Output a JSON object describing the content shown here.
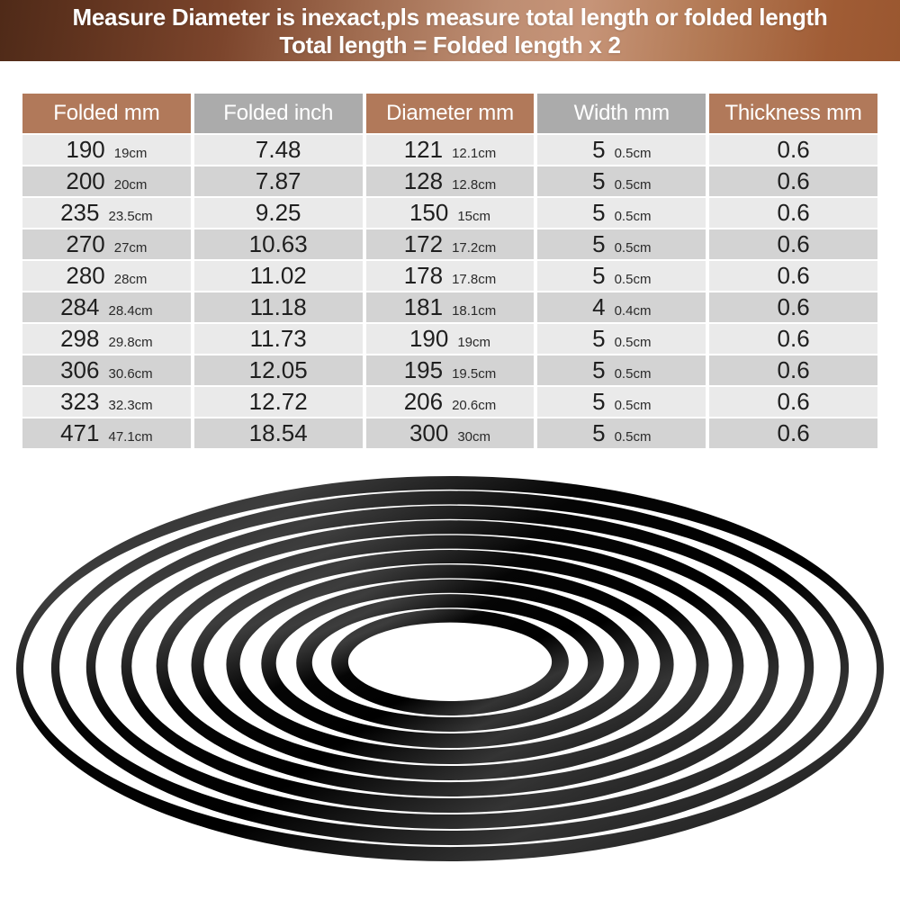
{
  "banner": {
    "line1": "Measure Diameter is inexact,pls measure total length or folded length",
    "line2": "Total length = Folded length x 2"
  },
  "table": {
    "headers": [
      {
        "label": "Folded mm",
        "style": "brown"
      },
      {
        "label": "Folded inch",
        "style": "gray"
      },
      {
        "label": "Diameter mm",
        "style": "brown"
      },
      {
        "label": "Width mm",
        "style": "gray"
      },
      {
        "label": "Thickness mm",
        "style": "brown"
      }
    ],
    "rows": [
      {
        "folded_mm": "190",
        "folded_cm": "19cm",
        "folded_inch": "7.48",
        "diameter_mm": "121",
        "diameter_cm": "12.1cm",
        "width_mm": "5",
        "width_cm": "0.5cm",
        "thickness_mm": "0.6"
      },
      {
        "folded_mm": "200",
        "folded_cm": "20cm",
        "folded_inch": "7.87",
        "diameter_mm": "128",
        "diameter_cm": "12.8cm",
        "width_mm": "5",
        "width_cm": "0.5cm",
        "thickness_mm": "0.6"
      },
      {
        "folded_mm": "235",
        "folded_cm": "23.5cm",
        "folded_inch": "9.25",
        "diameter_mm": "150",
        "diameter_cm": "15cm",
        "width_mm": "5",
        "width_cm": "0.5cm",
        "thickness_mm": "0.6"
      },
      {
        "folded_mm": "270",
        "folded_cm": "27cm",
        "folded_inch": "10.63",
        "diameter_mm": "172",
        "diameter_cm": "17.2cm",
        "width_mm": "5",
        "width_cm": "0.5cm",
        "thickness_mm": "0.6"
      },
      {
        "folded_mm": "280",
        "folded_cm": "28cm",
        "folded_inch": "11.02",
        "diameter_mm": "178",
        "diameter_cm": "17.8cm",
        "width_mm": "5",
        "width_cm": "0.5cm",
        "thickness_mm": "0.6"
      },
      {
        "folded_mm": "284",
        "folded_cm": "28.4cm",
        "folded_inch": "11.18",
        "diameter_mm": "181",
        "diameter_cm": "18.1cm",
        "width_mm": "4",
        "width_cm": "0.4cm",
        "thickness_mm": "0.6"
      },
      {
        "folded_mm": "298",
        "folded_cm": "29.8cm",
        "folded_inch": "11.73",
        "diameter_mm": "190",
        "diameter_cm": "19cm",
        "width_mm": "5",
        "width_cm": "0.5cm",
        "thickness_mm": "0.6"
      },
      {
        "folded_mm": "306",
        "folded_cm": "30.6cm",
        "folded_inch": "12.05",
        "diameter_mm": "195",
        "diameter_cm": "19.5cm",
        "width_mm": "5",
        "width_cm": "0.5cm",
        "thickness_mm": "0.6"
      },
      {
        "folded_mm": "323",
        "folded_cm": "32.3cm",
        "folded_inch": "12.72",
        "diameter_mm": "206",
        "diameter_cm": "20.6cm",
        "width_mm": "5",
        "width_cm": "0.5cm",
        "thickness_mm": "0.6"
      },
      {
        "folded_mm": "471",
        "folded_cm": "47.1cm",
        "folded_inch": "18.54",
        "diameter_mm": "300",
        "diameter_cm": "30cm",
        "width_mm": "5",
        "width_cm": "0.5cm",
        "thickness_mm": "0.6"
      }
    ]
  },
  "colors": {
    "header_brown": "#b1795a",
    "header_gray": "#ababab",
    "row_light": "#eaeaea",
    "row_dark": "#d3d3d3",
    "banner_dark_left": "#4f2a18",
    "banner_light_mid": "#c69478",
    "banner_right": "#9a5730",
    "ring_black": "#0a0a0a"
  },
  "illustration": {
    "name": "stacked-rubber-belt-rings",
    "ring_count": 10
  }
}
